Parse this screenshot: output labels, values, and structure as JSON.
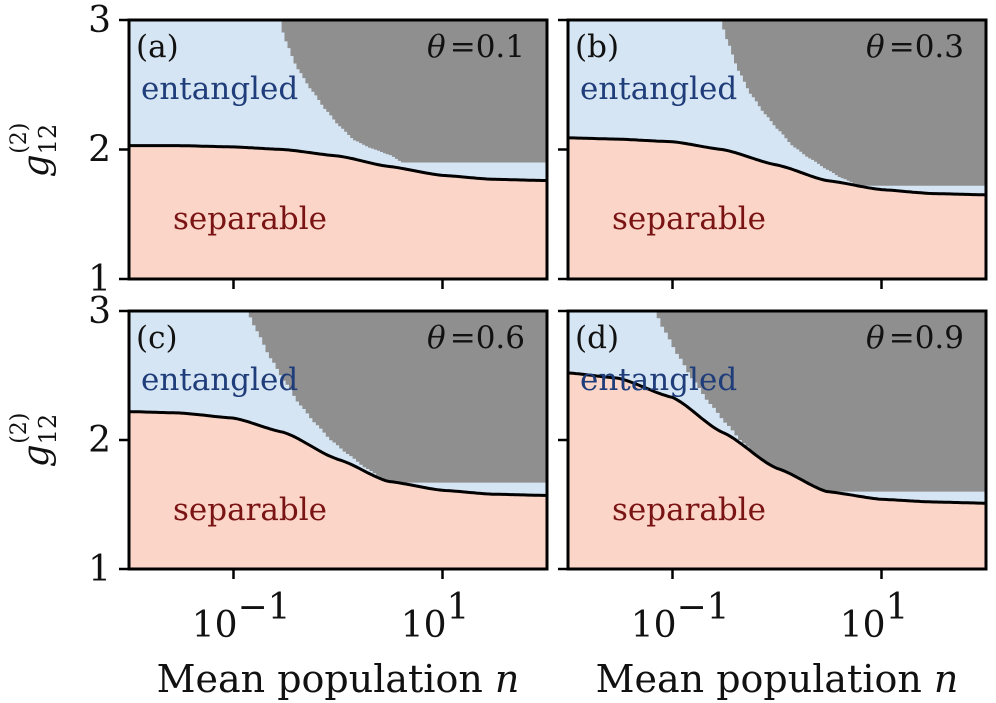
{
  "chart_data": {
    "type": "area",
    "x_scale": "log",
    "xlim": [
      0.01,
      100
    ],
    "ylim": [
      1,
      3
    ],
    "xlabel": "Mean population",
    "xlabel_var": "n",
    "ylabel_base": "g",
    "ylabel_sub": "12",
    "ylabel_sup": "(2)",
    "x_ticks": [
      0.1,
      10
    ],
    "x_tick_labels": [
      {
        "base": "10",
        "exp": "−1"
      },
      {
        "base": "10",
        "exp": "1"
      }
    ],
    "y_ticks": [
      1,
      2,
      3
    ],
    "y_tick_labels": [
      "1",
      "2",
      "3"
    ],
    "colors": {
      "entangled_fill": "#d6e5f3",
      "separable_fill": "#fbd5c7",
      "unphysical_fill": "#8f8f8f",
      "boundary_line": "#000000",
      "entangled_text": "#1f3d7a",
      "separable_text": "#7a1414"
    },
    "panels": [
      {
        "label": "(a)",
        "theta": "θ = 0.1",
        "entangled_label": "entangled",
        "separable_label": "separable",
        "boundary": {
          "x": [
            0.01,
            0.03,
            0.1,
            0.3,
            1,
            3,
            10,
            30,
            100
          ],
          "y": [
            2.03,
            2.03,
            2.02,
            2.0,
            1.95,
            1.87,
            1.8,
            1.77,
            1.76
          ]
        },
        "physical_limit": {
          "x": [
            0.27,
            0.3,
            0.4,
            0.55,
            0.75,
            1.0,
            1.4,
            2.0,
            3.0,
            4.0
          ],
          "y": [
            3.0,
            2.85,
            2.62,
            2.45,
            2.3,
            2.18,
            2.07,
            2.01,
            1.96,
            1.9
          ]
        }
      },
      {
        "label": "(b)",
        "theta": "θ = 0.3",
        "entangled_label": "entangled",
        "separable_label": "separable",
        "boundary": {
          "x": [
            0.01,
            0.03,
            0.1,
            0.3,
            1,
            3,
            10,
            30,
            100
          ],
          "y": [
            2.09,
            2.08,
            2.06,
            2.0,
            1.88,
            1.76,
            1.69,
            1.66,
            1.65
          ]
        },
        "physical_limit": {
          "x": [
            0.28,
            0.32,
            0.42,
            0.55,
            0.75,
            1.0,
            1.4,
            2.0,
            3.0,
            4.0,
            6.0
          ],
          "y": [
            3.0,
            2.85,
            2.6,
            2.42,
            2.27,
            2.15,
            2.02,
            1.93,
            1.84,
            1.78,
            1.72
          ]
        }
      },
      {
        "label": "(c)",
        "theta": "θ = 0.6",
        "entangled_label": "entangled",
        "separable_label": "separable",
        "boundary": {
          "x": [
            0.01,
            0.03,
            0.1,
            0.3,
            1,
            3,
            10,
            30,
            100
          ],
          "y": [
            2.22,
            2.21,
            2.17,
            2.06,
            1.85,
            1.68,
            1.61,
            1.58,
            1.57
          ]
        },
        "physical_limit": {
          "x": [
            0.13,
            0.16,
            0.22,
            0.3,
            0.42,
            0.6,
            0.85,
            1.2,
            1.8,
            2.6,
            3.5
          ],
          "y": [
            3.0,
            2.85,
            2.63,
            2.45,
            2.27,
            2.12,
            1.99,
            1.89,
            1.78,
            1.7,
            1.67
          ]
        }
      },
      {
        "label": "(d)",
        "theta": "θ = 0.9",
        "entangled_label": "entangled",
        "separable_label": "separable",
        "boundary": {
          "x": [
            0.01,
            0.03,
            0.1,
            0.3,
            1,
            3,
            10,
            30,
            100
          ],
          "y": [
            2.52,
            2.48,
            2.33,
            2.06,
            1.78,
            1.6,
            1.54,
            1.52,
            1.51
          ]
        },
        "physical_limit": {
          "x": [
            0.065,
            0.08,
            0.11,
            0.15,
            0.22,
            0.32,
            0.45,
            0.65,
            0.95,
            1.4,
            2.0
          ],
          "y": [
            3.0,
            2.85,
            2.65,
            2.47,
            2.28,
            2.12,
            1.98,
            1.86,
            1.74,
            1.64,
            1.6
          ]
        }
      }
    ]
  }
}
